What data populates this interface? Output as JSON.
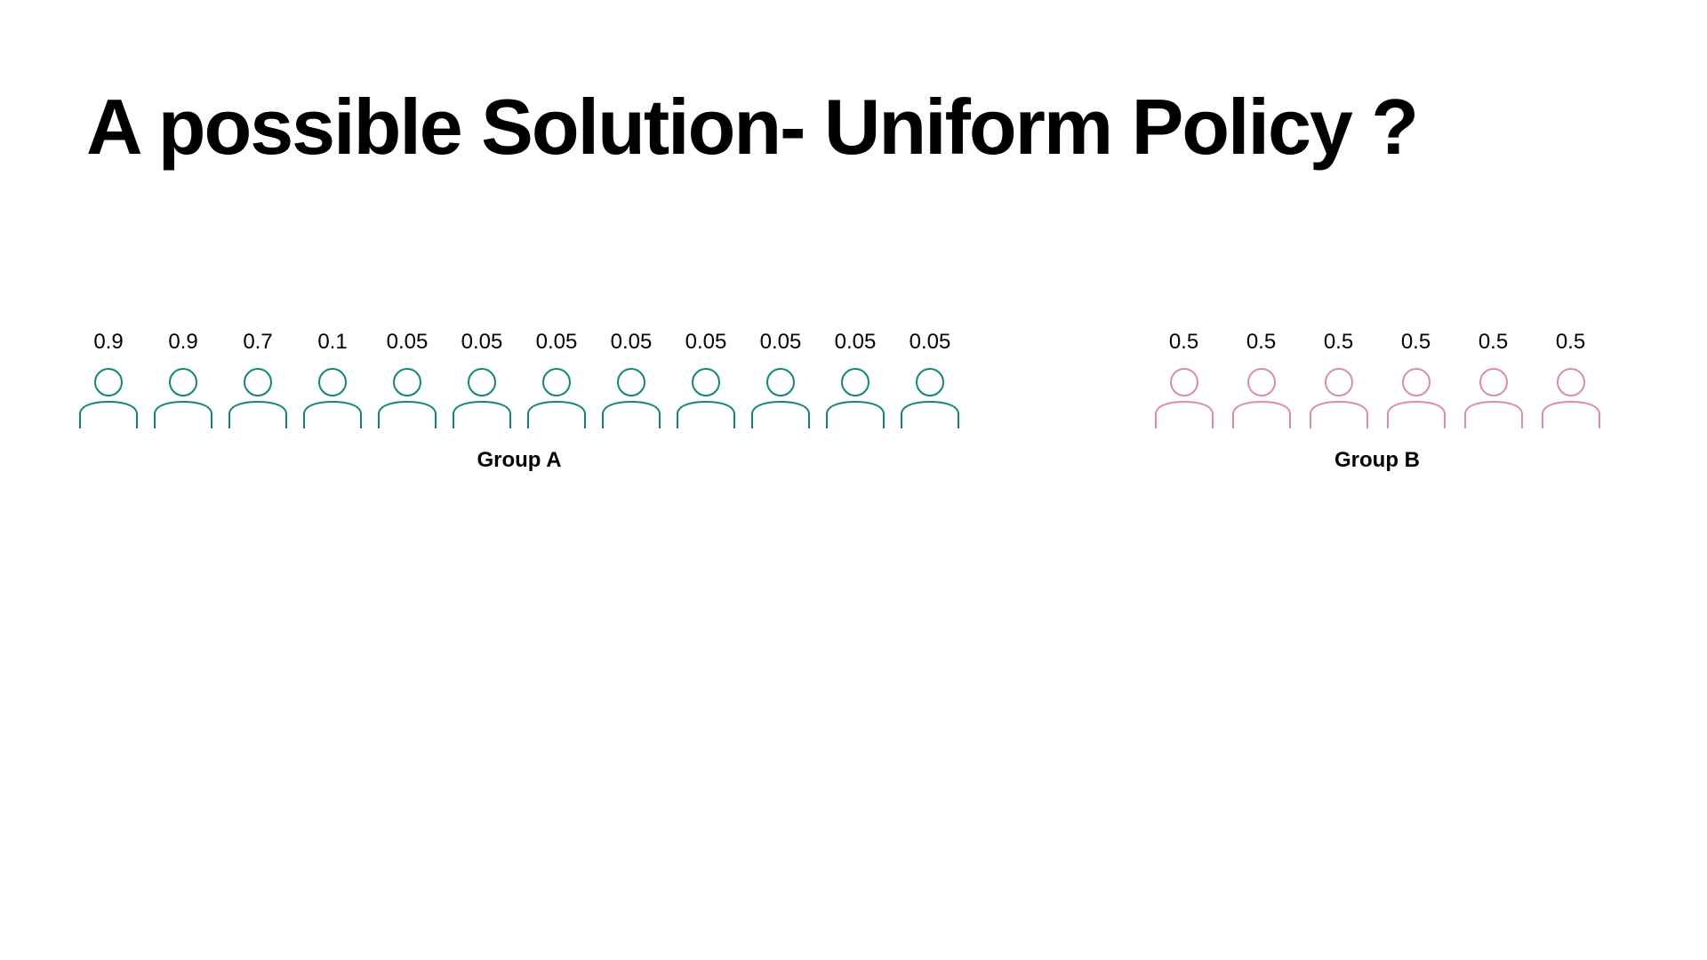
{
  "title": "A possible Solution- Uniform Policy ?",
  "colors": {
    "group_a_icon": "#12857a",
    "group_b_icon": "#d98fa0",
    "text": "#000000",
    "background": "#ffffff"
  },
  "groups": [
    {
      "label": "Group A",
      "icon": "person-outline-icon",
      "color": "#12857a",
      "members": [
        "0.9",
        "0.9",
        "0.7",
        "0.1",
        "0.05",
        "0.05",
        "0.05",
        "0.05",
        "0.05",
        "0.05",
        "0.05",
        "0.05"
      ]
    },
    {
      "label": "Group B",
      "icon": "person-outline-icon",
      "color": "#d98fa0",
      "members": [
        "0.5",
        "0.5",
        "0.5",
        "0.5",
        "0.5",
        "0.5"
      ]
    }
  ]
}
